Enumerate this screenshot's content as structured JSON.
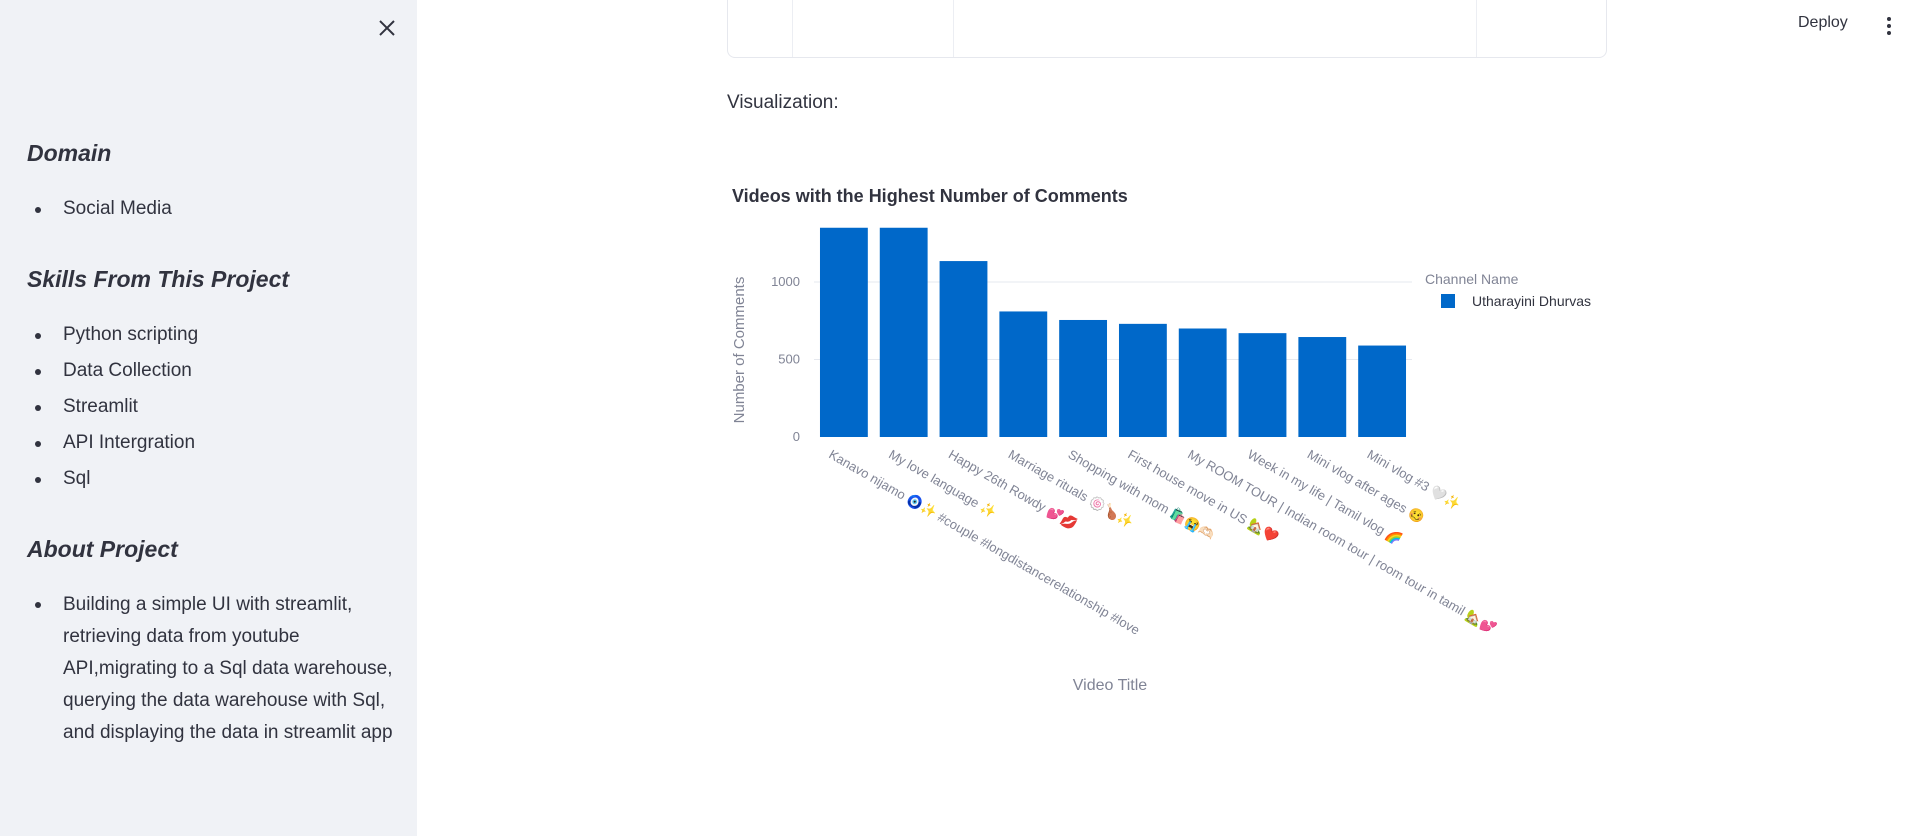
{
  "sidebar": {
    "sections": [
      {
        "heading": "Domain",
        "items": [
          "Social Media"
        ]
      },
      {
        "heading": "Skills From This Project",
        "items": [
          "Python scripting",
          "Data Collection",
          "Streamlit",
          "API Intergration",
          "Sql"
        ]
      },
      {
        "heading": "About Project",
        "items": [
          "Building a simple UI with streamlit, retrieving data from youtube API,migrating to a Sql data warehouse, querying the data warehouse with Sql, and displaying the data in streamlit app"
        ]
      }
    ]
  },
  "header": {
    "deploy_label": "Deploy"
  },
  "main": {
    "visualization_label": "Visualization:"
  },
  "colors": {
    "bar": "#0068c9",
    "sidebar_bg": "#f0f2f6",
    "text": "#31333f"
  },
  "chart_data": {
    "type": "bar",
    "title": "Videos with the Highest Number of Comments",
    "xlabel": "Video Title",
    "ylabel": "Number of Comments",
    "legend_title": "Channel Name",
    "legend_placement": "top-right",
    "grid": true,
    "ylim": [
      0,
      1400
    ],
    "yticks": [
      0,
      500,
      1000
    ],
    "categories": [
      "Kanavo nijamo 🧿✨ #couple #longdistancerelationship #love",
      "My love language ✨",
      "Happy 26th Rowdy 💕💋",
      "Marriage rituals 🍥🍗✨",
      "Shopping with mom 🛍️😭🫶🏻",
      "First house move in US 🏡❤️",
      "My ROOM TOUR | Indian room tour | room tour in tamil 🏡💕",
      "Week in my life | Tamil vlog 🌈",
      "Mini vlog after ages 🥴",
      "Mini vlog #3 🤍✨"
    ],
    "series": [
      {
        "name": "Utharayini Dhurvas",
        "values": [
          1350,
          1350,
          1135,
          810,
          755,
          730,
          700,
          670,
          645,
          590
        ]
      }
    ]
  }
}
